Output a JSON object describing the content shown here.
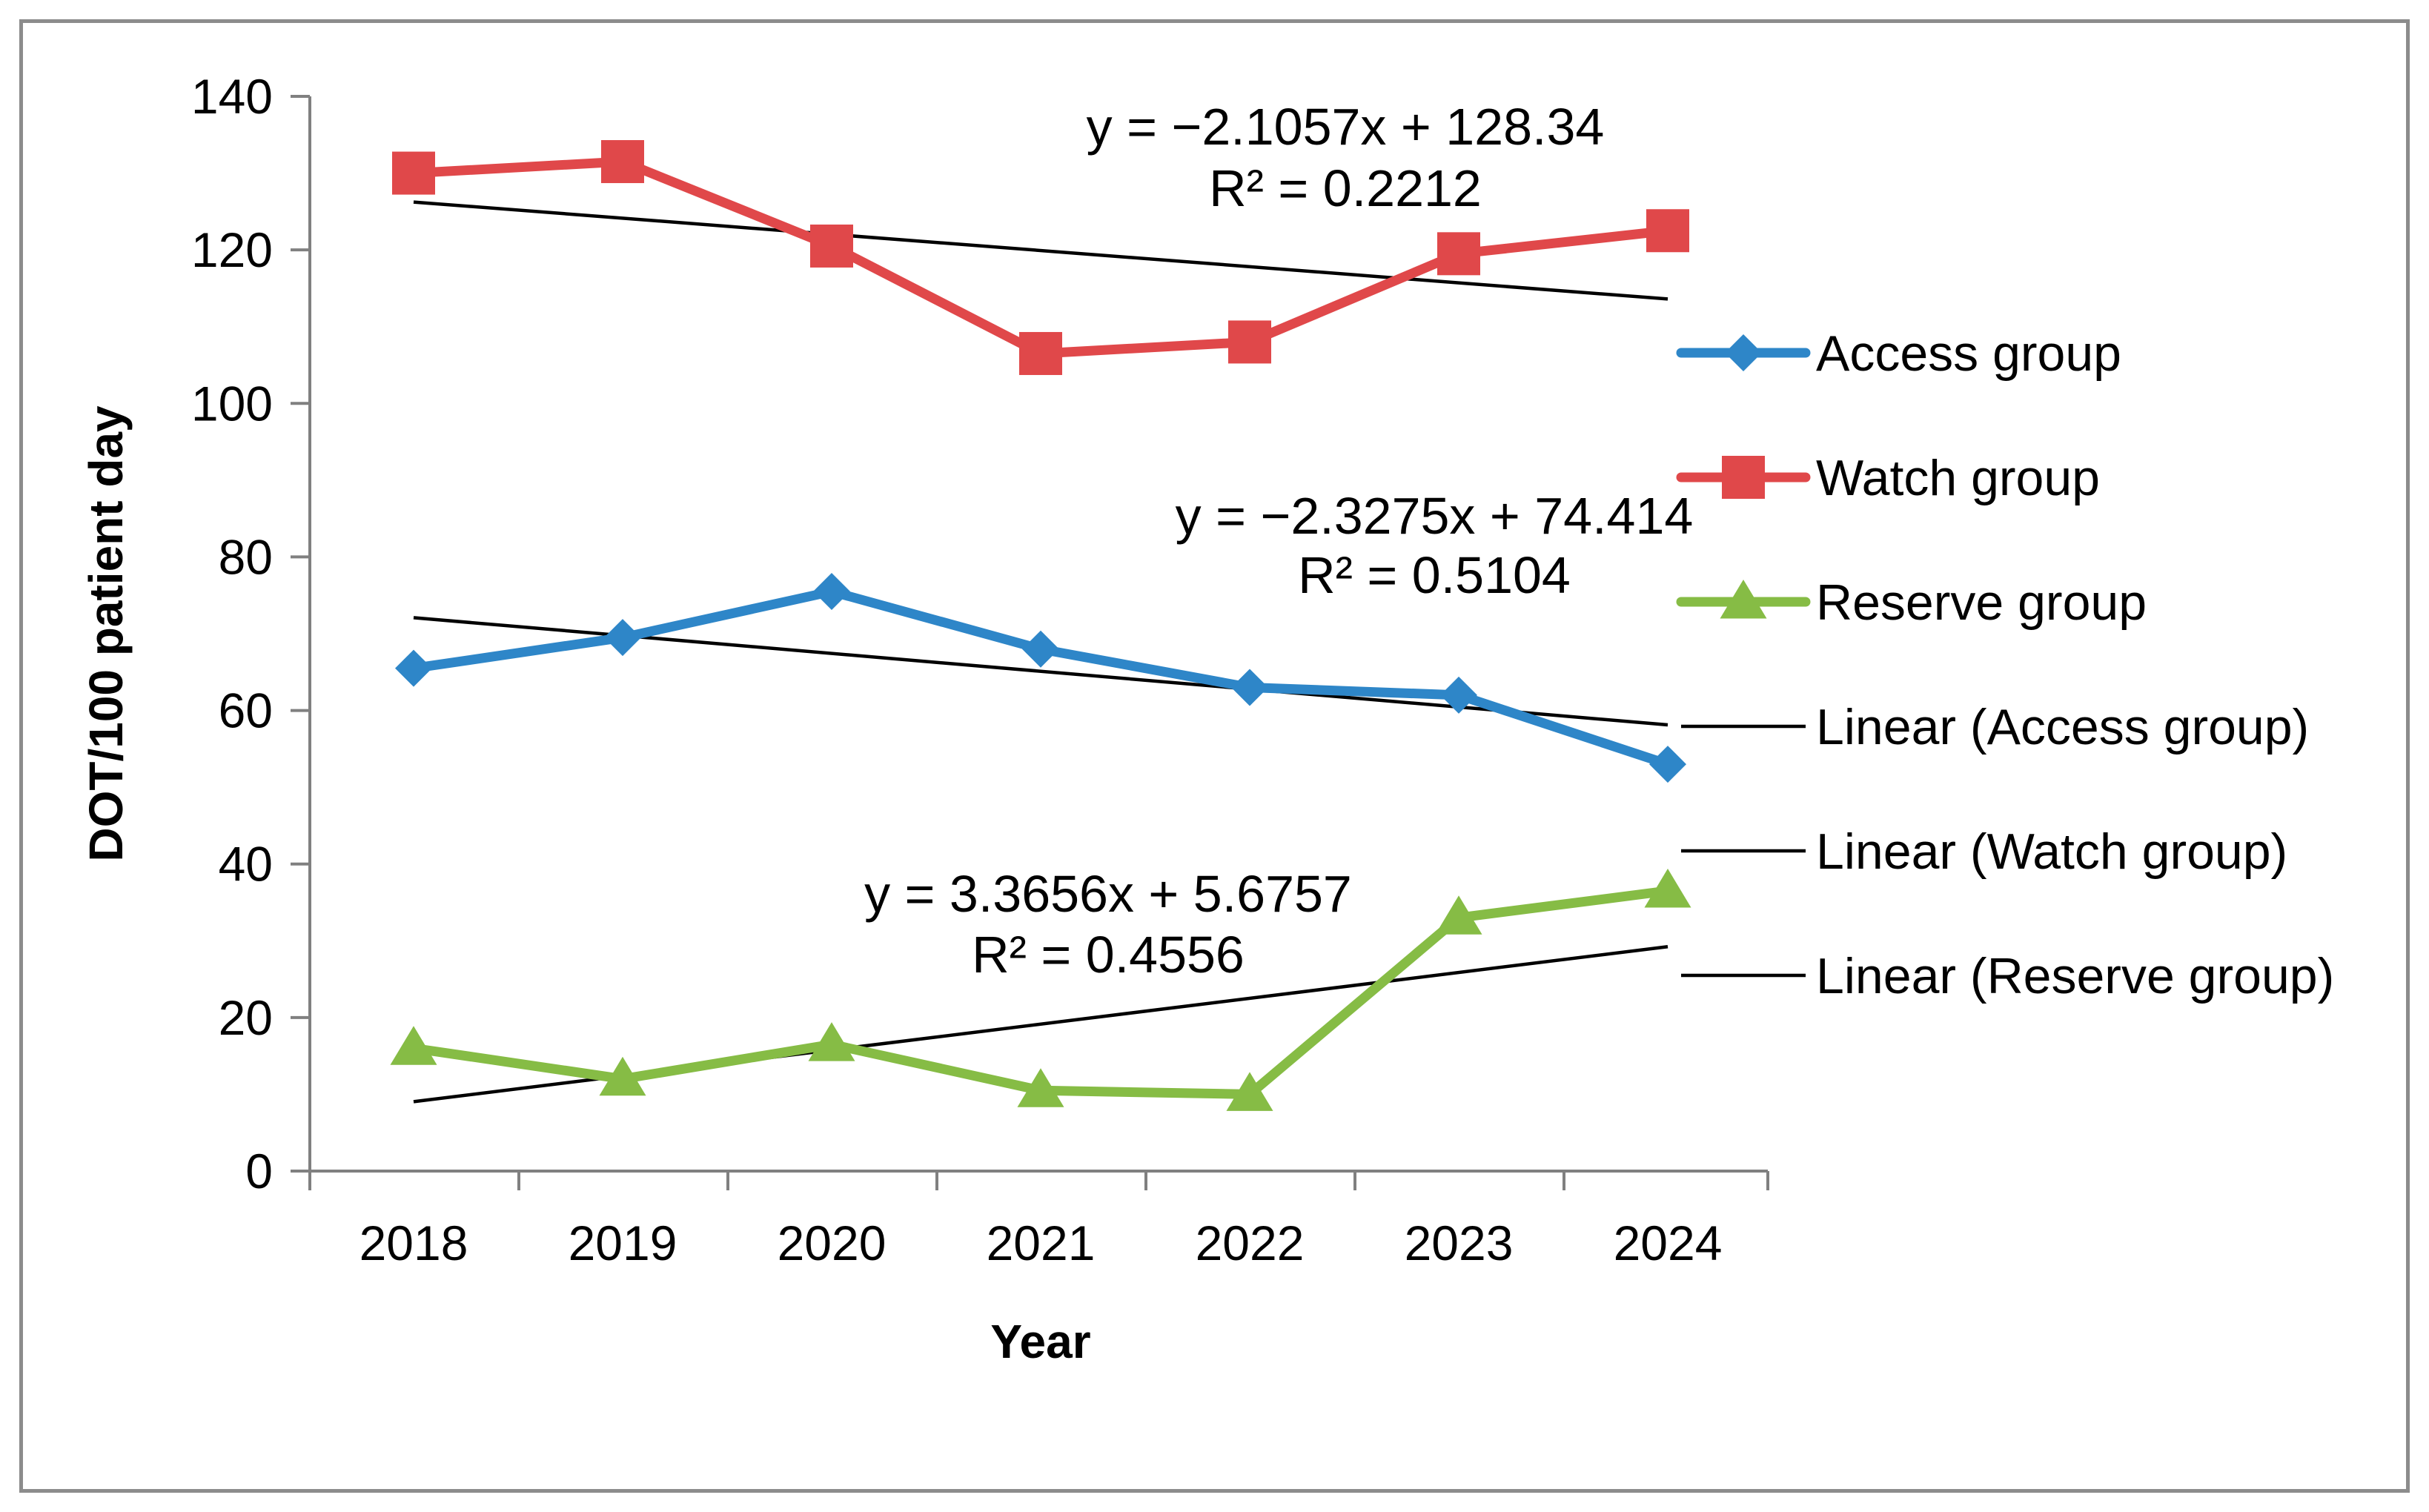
{
  "chart_data": {
    "type": "line",
    "title": "",
    "xlabel": "Year",
    "ylabel": "DOT/100 patient day",
    "categories": [
      "2018",
      "2019",
      "2020",
      "2021",
      "2022",
      "2023",
      "2024"
    ],
    "ylim": [
      0,
      140
    ],
    "yticks": [
      0,
      20,
      40,
      60,
      80,
      100,
      120,
      140
    ],
    "ytick_labels": [
      "0",
      "20",
      "40",
      "60",
      "80",
      "100",
      "120",
      "140"
    ],
    "grid": false,
    "legend_position": "right",
    "series": [
      {
        "name": "Access group",
        "color": "#2E86C8",
        "marker": "diamond",
        "values": [
          65.5,
          69.5,
          75.5,
          68,
          63,
          62,
          53
        ]
      },
      {
        "name": "Watch group",
        "color": "#E0484A",
        "marker": "square",
        "values": [
          130,
          131.5,
          120.5,
          106.5,
          108,
          119.5,
          122.5
        ]
      },
      {
        "name": "Reserve group",
        "color": "#86BC45",
        "marker": "triangle",
        "values": [
          16,
          12,
          16.5,
          10.5,
          10,
          33,
          36.5
        ]
      }
    ],
    "trendlines": [
      {
        "name": "Linear (Access group)",
        "series": "Access group",
        "slope": -2.3275,
        "intercept": 74.414,
        "equation": "y = −2.3275x + 74.414",
        "r2_text": "R² = 0.5104",
        "color": "#000000"
      },
      {
        "name": "Linear (Watch group)",
        "series": "Watch group",
        "slope": -2.1057,
        "intercept": 128.34,
        "equation": "y = −2.1057x + 128.34",
        "r2_text": "R² = 0.2212",
        "color": "#000000"
      },
      {
        "name": "Linear (Reserve group)",
        "series": "Reserve group",
        "slope": 3.3656,
        "intercept": 5.6757,
        "equation": "y = 3.3656x + 5.6757",
        "r2_text": "R² = 0.4556",
        "color": "#000000"
      }
    ]
  }
}
